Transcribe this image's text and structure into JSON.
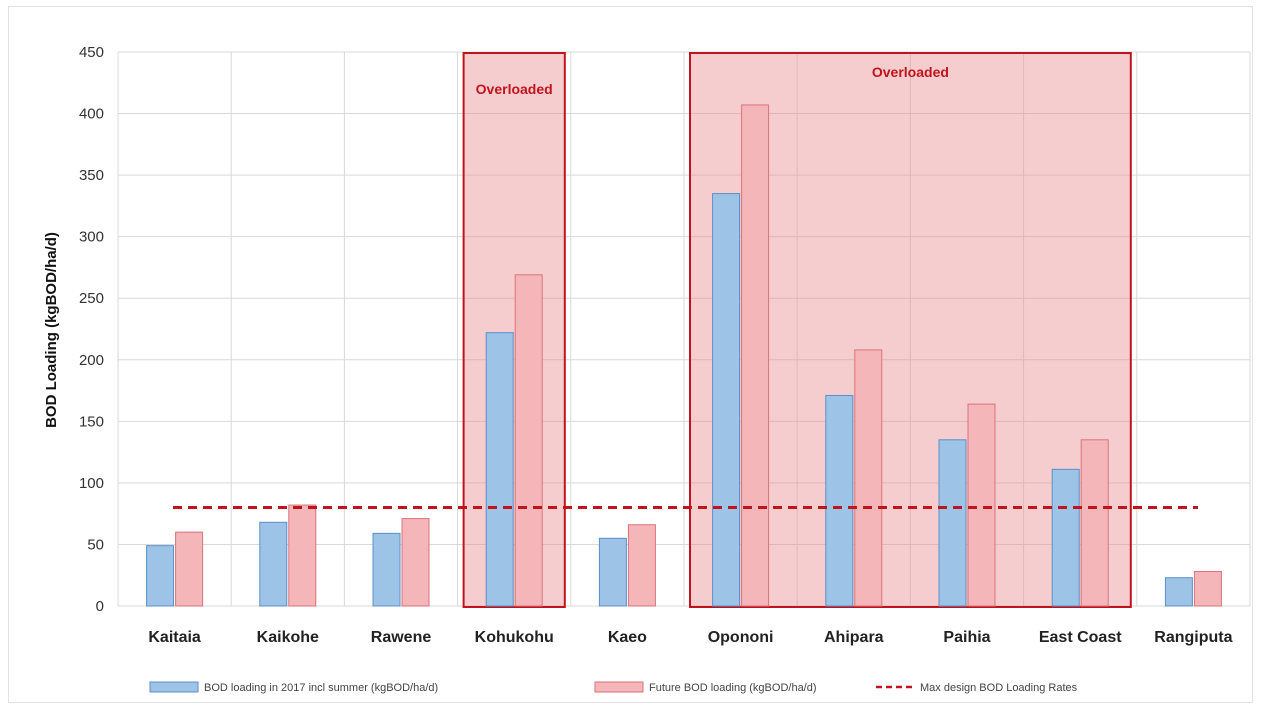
{
  "chart_data": {
    "type": "bar",
    "title": "",
    "xlabel": "",
    "ylabel": "BOD Loading (kgBOD/ha/d)",
    "ylim": [
      0,
      450
    ],
    "yticks": [
      "0",
      "50",
      "100",
      "150",
      "200",
      "250",
      "300",
      "350",
      "400",
      "450"
    ],
    "grid": true,
    "legend_position": "bottom",
    "categories": [
      "Kaitaia",
      "Kaikohe",
      "Rawene",
      "Kohukohu",
      "Kaeo",
      "Opononi",
      "Ahipara",
      "Paihia",
      "East Coast",
      "Rangiputa"
    ],
    "series": [
      {
        "name": "BOD loading in 2017 incl summer (kgBOD/ha/d)",
        "color": "#9dc3e6",
        "values": [
          49,
          68,
          59,
          222,
          55,
          335,
          171,
          135,
          111,
          23
        ]
      },
      {
        "name": "Future BOD loading (kgBOD/ha/d)",
        "color": "#f4b6b9",
        "values": [
          60,
          82,
          71,
          269,
          66,
          407,
          208,
          164,
          135,
          28
        ]
      }
    ],
    "reference_line": {
      "name": "Max design BOD Loading Rates",
      "value": 80,
      "color": "#c0141c"
    },
    "annotations": [
      {
        "label": "Overloaded",
        "categories": [
          "Kohukohu"
        ]
      },
      {
        "label": "Overloaded",
        "categories": [
          "Opononi",
          "Ahipara",
          "Paihia",
          "East Coast"
        ]
      }
    ]
  }
}
